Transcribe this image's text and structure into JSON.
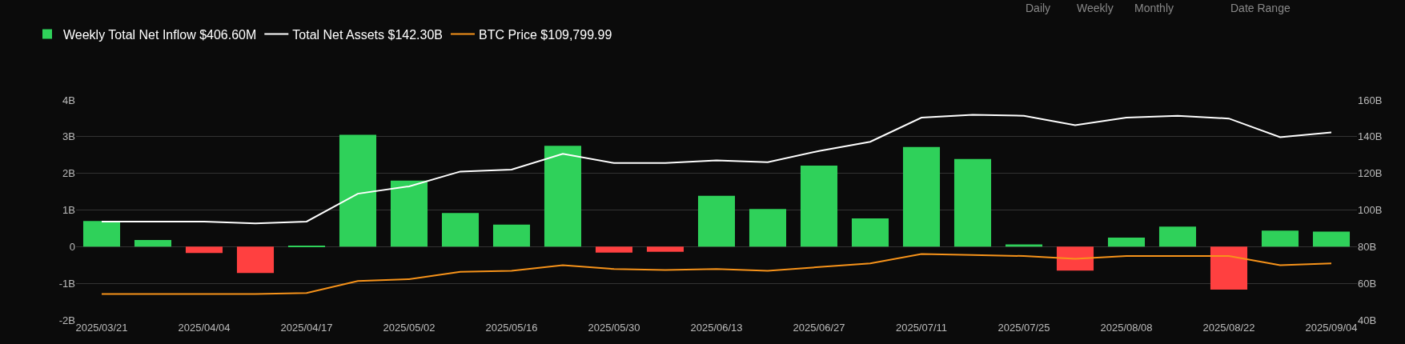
{
  "chart_data": {
    "type": "bar",
    "categories": [
      "2025/03/21",
      null,
      "2025/04/04",
      null,
      "2025/04/17",
      null,
      "2025/05/02",
      null,
      "2025/05/16",
      null,
      "2025/05/30",
      null,
      "2025/06/13",
      null,
      "2025/06/27",
      null,
      "2025/07/11",
      null,
      "2025/07/25",
      null,
      "2025/08/08",
      null,
      "2025/08/22",
      null,
      "2025/09/04"
    ],
    "series": [
      {
        "name": "Weekly Total Net Inflow $406.60M",
        "color": "#2fd15a",
        "colors": [
          "#2fd15a",
          "#2fd15a",
          "#ff4040",
          "#ff4040",
          "#2fd15a",
          "#2fd15a",
          "#2fd15a",
          "#2fd15a",
          "#2fd15a",
          "#2fd15a",
          "#ff4040",
          "#ff4040",
          "#2fd15a",
          "#2fd15a",
          "#2fd15a",
          "#2fd15a",
          "#2fd15a",
          "#2fd15a",
          "#2fd15a",
          "#ff4040",
          "#2fd15a",
          "#2fd15a",
          "#ff4040",
          "#2fd15a",
          "#2fd15a"
        ],
        "values": [
          0.7,
          0.18,
          -0.17,
          -0.72,
          0.01,
          3.05,
          1.8,
          0.92,
          0.6,
          2.75,
          -0.16,
          -0.14,
          1.39,
          1.03,
          2.21,
          0.77,
          2.72,
          2.39,
          0.06,
          -0.65,
          0.25,
          0.55,
          -1.17,
          0.44,
          0.41
        ]
      },
      {
        "name": "Total Net Assets $142.30B",
        "type": "line",
        "axis": "y2",
        "color": "#ffffff",
        "values": [
          93.7,
          93.7,
          93.7,
          92.7,
          93.7,
          108.9,
          112.9,
          121,
          122,
          130.6,
          125.6,
          125.6,
          127.1,
          126.1,
          132.2,
          137.2,
          150.4,
          151.9,
          151.4,
          146.3,
          150.4,
          151.4,
          149.9,
          139.7,
          142.3
        ]
      },
      {
        "name": "BTC Price $109,799.99",
        "type": "line",
        "axis": "y2",
        "color": "#f7931a",
        "values": [
          54.2,
          54.2,
          54.2,
          54.2,
          54.7,
          61.3,
          62.3,
          66.3,
          66.8,
          69.9,
          67.8,
          67.3,
          67.8,
          66.8,
          68.9,
          70.9,
          76,
          75.4,
          74.9,
          73.4,
          74.9,
          74.9,
          74.9,
          69.9,
          70.9
        ]
      }
    ],
    "ylim": [
      -2,
      4
    ],
    "yticks": [
      {
        "value": -2,
        "label": "-2B"
      },
      {
        "value": -1,
        "label": "-1B"
      },
      {
        "value": 0,
        "label": "0"
      },
      {
        "value": 1,
        "label": "1B"
      },
      {
        "value": 2,
        "label": "2B"
      },
      {
        "value": 3,
        "label": "3B"
      },
      {
        "value": 4,
        "label": "4B"
      }
    ],
    "y2lim": [
      40,
      160
    ],
    "y2ticks": [
      {
        "value": 40,
        "label": "40B"
      },
      {
        "value": 60,
        "label": "60B"
      },
      {
        "value": 80,
        "label": "80B"
      },
      {
        "value": 100,
        "label": "100B"
      },
      {
        "value": 120,
        "label": "120B"
      },
      {
        "value": 140,
        "label": "140B"
      },
      {
        "value": 160,
        "label": "160B"
      }
    ],
    "grid": "y",
    "legend": "top left",
    "marker": "none",
    "annotations": [
      "Daily",
      "Weekly",
      "Monthly",
      "Date Range"
    ]
  }
}
